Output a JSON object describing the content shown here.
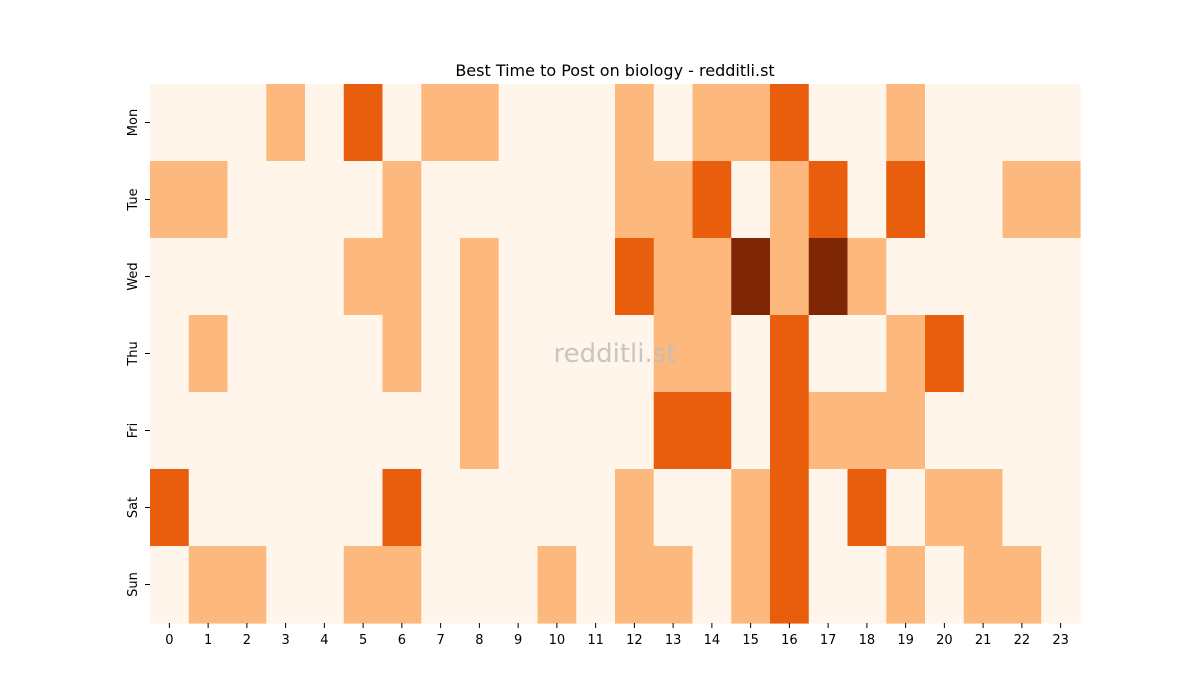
{
  "chart_data": {
    "type": "heatmap",
    "title": "Best Time to Post on biology - redditli.st",
    "watermark": "redditli.st",
    "x_categories": [
      "0",
      "1",
      "2",
      "3",
      "4",
      "5",
      "6",
      "7",
      "8",
      "9",
      "10",
      "11",
      "12",
      "13",
      "14",
      "15",
      "16",
      "17",
      "18",
      "19",
      "20",
      "21",
      "22",
      "23"
    ],
    "y_categories": [
      "Mon",
      "Tue",
      "Wed",
      "Thu",
      "Fri",
      "Sat",
      "Sun"
    ],
    "values": [
      [
        0,
        0,
        0,
        1,
        0,
        2,
        0,
        1,
        1,
        0,
        0,
        0,
        1,
        0,
        1,
        1,
        2,
        0,
        0,
        1,
        0,
        0,
        0,
        0
      ],
      [
        1,
        1,
        0,
        0,
        0,
        0,
        1,
        0,
        0,
        0,
        0,
        0,
        1,
        1,
        2,
        0,
        1,
        2,
        0,
        2,
        0,
        0,
        1,
        1
      ],
      [
        0,
        0,
        0,
        0,
        0,
        1,
        1,
        0,
        1,
        0,
        0,
        0,
        2,
        1,
        1,
        3,
        1,
        3,
        1,
        0,
        0,
        0,
        0,
        0
      ],
      [
        0,
        1,
        0,
        0,
        0,
        0,
        1,
        0,
        1,
        0,
        0,
        0,
        0,
        1,
        1,
        0,
        2,
        0,
        0,
        1,
        2,
        0,
        0,
        0
      ],
      [
        0,
        0,
        0,
        0,
        0,
        0,
        0,
        0,
        1,
        0,
        0,
        0,
        0,
        2,
        2,
        0,
        2,
        1,
        1,
        1,
        0,
        0,
        0,
        0
      ],
      [
        2,
        0,
        0,
        0,
        0,
        0,
        2,
        0,
        0,
        0,
        0,
        0,
        1,
        0,
        0,
        1,
        2,
        0,
        2,
        0,
        1,
        1,
        0,
        0
      ],
      [
        0,
        1,
        1,
        0,
        0,
        1,
        1,
        0,
        0,
        0,
        1,
        0,
        1,
        1,
        0,
        1,
        2,
        0,
        0,
        1,
        0,
        1,
        1,
        0
      ]
    ],
    "value_range": [
      0,
      3
    ],
    "colormap": [
      "#fff5eb",
      "#fdb97d",
      "#e95e0d",
      "#7f2704"
    ],
    "grid": false,
    "legend": "none"
  }
}
